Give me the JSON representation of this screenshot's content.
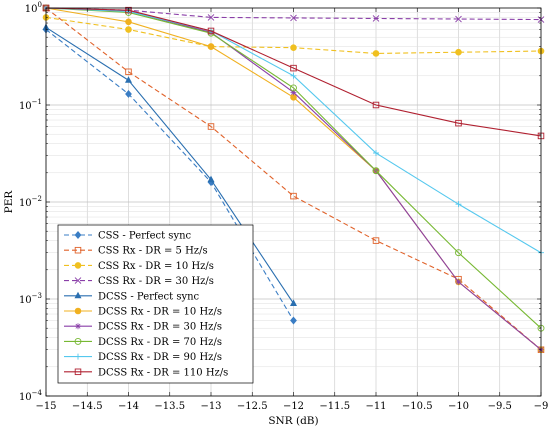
{
  "chart_data": {
    "type": "line",
    "title": "",
    "xlabel": "SNR (dB)",
    "ylabel": "PER",
    "xlim": [
      -15,
      -9
    ],
    "ylim": [
      0.0001,
      1
    ],
    "yscale": "log",
    "grid": true,
    "legend_position": "bottom-left",
    "x_ticks": [
      -15,
      -14.5,
      -14,
      -13.5,
      -13,
      -12.5,
      -12,
      -11.5,
      -11,
      -10.5,
      -10,
      -9.5,
      -9
    ],
    "x_tick_labels": [
      "−15",
      "−14.5",
      "−14",
      "−13.5",
      "−13",
      "−12.5",
      "−12",
      "−11.5",
      "−11",
      "−10.5",
      "−10",
      "−9.5",
      "−9"
    ],
    "y_ticks": [
      {
        "value": 0.0001,
        "base": "10",
        "exp": "−4"
      },
      {
        "value": 0.001,
        "base": "10",
        "exp": "−3"
      },
      {
        "value": 0.01,
        "base": "10",
        "exp": "−2"
      },
      {
        "value": 0.1,
        "base": "10",
        "exp": "−1"
      },
      {
        "value": 1,
        "base": "10",
        "exp": "0"
      }
    ],
    "series": [
      {
        "name": "CSS - Perfect sync",
        "color": "#3a7dc4",
        "dash": "5,3",
        "marker": "diamond",
        "x": [
          -15,
          -14,
          -13,
          -12
        ],
        "y": [
          0.6,
          0.13,
          0.016,
          0.0006
        ]
      },
      {
        "name": "CSS Rx - DR = 5 Hz/s",
        "color": "#e0622a",
        "dash": "5,3",
        "marker": "square",
        "x": [
          -15,
          -14,
          -13,
          -12,
          -11,
          -10,
          -9
        ],
        "y": [
          1.0,
          0.22,
          0.06,
          0.0115,
          0.004,
          0.0016,
          0.0003
        ]
      },
      {
        "name": "CSS Rx - DR = 10 Hz/s",
        "color": "#f0c020",
        "dash": "5,3",
        "marker": "circle-filled",
        "x": [
          -15,
          -14,
          -13,
          -12,
          -11,
          -10,
          -9
        ],
        "y": [
          0.8,
          0.6,
          0.4,
          0.39,
          0.34,
          0.35,
          0.36
        ]
      },
      {
        "name": "CSS Rx - DR = 30 Hz/s",
        "color": "#8a3fa8",
        "dash": "5,3",
        "marker": "x",
        "x": [
          -15,
          -14,
          -13,
          -12,
          -11,
          -10,
          -9
        ],
        "y": [
          1.0,
          0.95,
          0.8,
          0.79,
          0.78,
          0.77,
          0.76
        ]
      },
      {
        "name": "DCSS - Perfect sync",
        "color": "#2a6fb0",
        "dash": "",
        "marker": "triangle",
        "x": [
          -15,
          -14,
          -13,
          -12
        ],
        "y": [
          0.63,
          0.18,
          0.017,
          0.0009
        ]
      },
      {
        "name": "DCSS Rx - DR = 10 Hz/s",
        "color": "#f0b020",
        "dash": "",
        "marker": "circle-filled",
        "x": [
          -15,
          -14,
          -13,
          -12,
          -11,
          -10,
          -9
        ],
        "y": [
          1.0,
          0.72,
          0.4,
          0.12,
          0.021,
          0.0015,
          0.0003
        ]
      },
      {
        "name": "DCSS Rx - DR = 30 Hz/s",
        "color": "#8a3fa8",
        "dash": "",
        "marker": "star",
        "x": [
          -15,
          -14,
          -13,
          -12,
          -11,
          -10,
          -9
        ],
        "y": [
          1.0,
          0.93,
          0.56,
          0.135,
          0.021,
          0.0015,
          0.0003
        ]
      },
      {
        "name": "DCSS Rx - DR = 70 Hz/s",
        "color": "#77b833",
        "dash": "",
        "marker": "circle-open",
        "x": [
          -15,
          -14,
          -13,
          -12,
          -11,
          -10,
          -9
        ],
        "y": [
          1.0,
          0.9,
          0.55,
          0.15,
          0.021,
          0.003,
          0.0005
        ]
      },
      {
        "name": "DCSS Rx - DR = 90 Hz/s",
        "color": "#55c8ee",
        "dash": "",
        "marker": "plus",
        "x": [
          -15,
          -14,
          -13,
          -12,
          -11,
          -10,
          -9
        ],
        "y": [
          1.0,
          0.92,
          0.58,
          0.2,
          0.032,
          0.0095,
          0.003
        ]
      },
      {
        "name": "DCSS Rx - DR = 110 Hz/s",
        "color": "#b02030",
        "dash": "",
        "marker": "square",
        "x": [
          -15,
          -14,
          -13,
          -12,
          -11,
          -10,
          -9
        ],
        "y": [
          1.0,
          0.95,
          0.58,
          0.24,
          0.1,
          0.065,
          0.048
        ]
      }
    ]
  }
}
